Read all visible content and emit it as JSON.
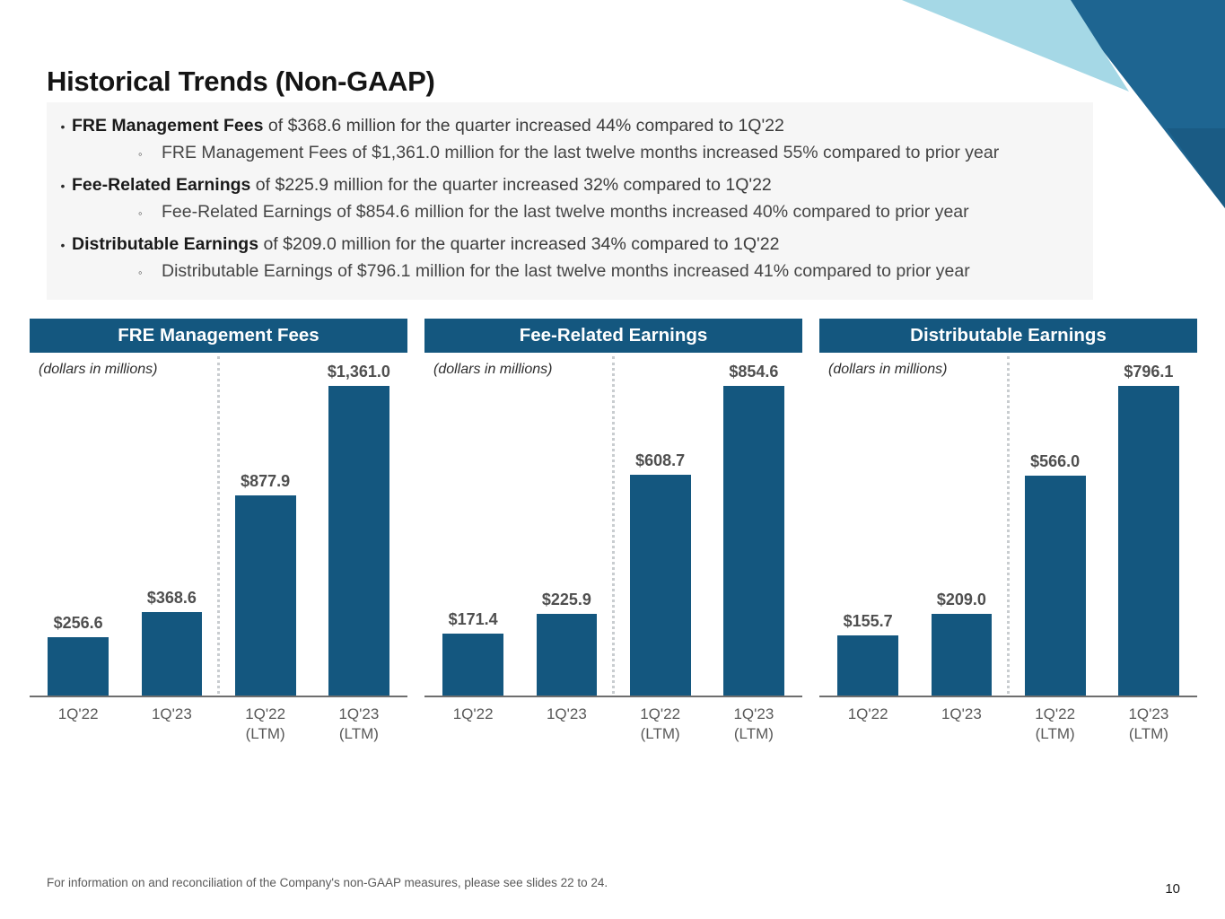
{
  "slide": {
    "title": "Historical Trends (Non-GAAP)",
    "footnote": "For information on and reconciliation of the Company's non-GAAP measures, please see slides 22 to 24.",
    "page_number": "10"
  },
  "bullets": [
    {
      "lead": "FRE Management Fees",
      "rest": " of $368.6 million for the quarter increased 44% compared to 1Q'22",
      "sub": "FRE Management Fees of $1,361.0 million for the last twelve months increased 55% compared to prior year"
    },
    {
      "lead": "Fee-Related Earnings",
      "rest": " of $225.9 million for the quarter increased 32% compared to 1Q'22",
      "sub": "Fee-Related Earnings of $854.6 million for the last twelve months increased 40% compared to prior year"
    },
    {
      "lead": "Distributable Earnings",
      "rest": " of $209.0 million for the quarter increased 34% compared to 1Q'22",
      "sub": "Distributable Earnings of $796.1 million for the last twelve months increased 41% compared to prior year"
    }
  ],
  "colors": {
    "accent": "#14577F",
    "bar": "#14577F",
    "corner_dark": "#1E6591",
    "corner_facet": "#1A5B84",
    "corner_light": "#A5D8E6",
    "value_label": "#4F4F4F",
    "tick_label": "#595959"
  },
  "chart_data": [
    {
      "type": "bar",
      "title": "FRE Management Fees",
      "note": "(dollars in millions)",
      "categories": [
        "1Q'22",
        "1Q'23",
        "1Q'22\n(LTM)",
        "1Q'23\n(LTM)"
      ],
      "values": [
        256.6,
        368.6,
        877.9,
        1361.0
      ],
      "labels": [
        "$256.6",
        "$368.6",
        "$877.9",
        "$1,361.0"
      ],
      "ylim": [
        0,
        1361.0
      ],
      "grid": false,
      "divider": "dotted line between quarterly and LTM bars"
    },
    {
      "type": "bar",
      "title": "Fee-Related Earnings",
      "note": "(dollars in millions)",
      "categories": [
        "1Q'22",
        "1Q'23",
        "1Q'22\n(LTM)",
        "1Q'23\n(LTM)"
      ],
      "values": [
        171.4,
        225.9,
        608.7,
        854.6
      ],
      "labels": [
        "$171.4",
        "$225.9",
        "$608.7",
        "$854.6"
      ],
      "ylim": [
        0,
        854.6
      ],
      "grid": false,
      "divider": "dotted line between quarterly and LTM bars"
    },
    {
      "type": "bar",
      "title": "Distributable Earnings",
      "note": "(dollars in millions)",
      "categories": [
        "1Q'22",
        "1Q'23",
        "1Q'22\n(LTM)",
        "1Q'23\n(LTM)"
      ],
      "values": [
        155.7,
        209.0,
        566.0,
        796.1
      ],
      "labels": [
        "$155.7",
        "$209.0",
        "$566.0",
        "$796.1"
      ],
      "ylim": [
        0,
        796.1
      ],
      "grid": false,
      "divider": "dotted line between quarterly and LTM bars"
    }
  ]
}
